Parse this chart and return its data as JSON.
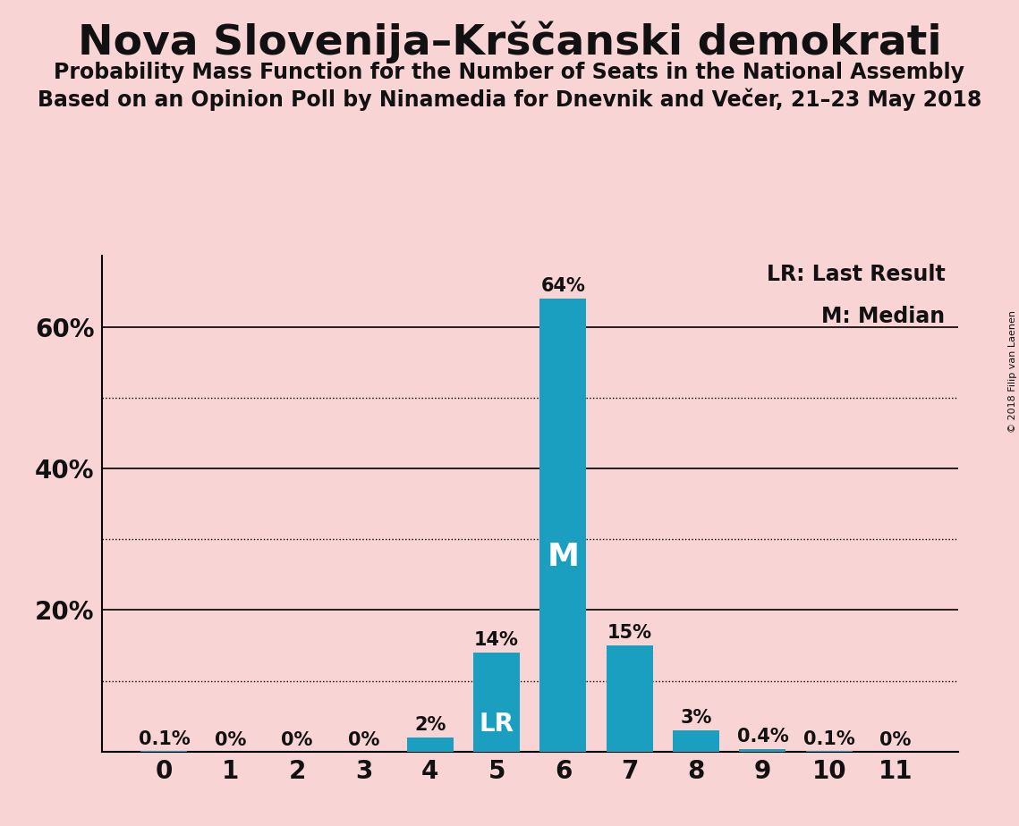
{
  "title": "Nova Slovenija–Krščanski demokrati",
  "subtitle1": "Probability Mass Function for the Number of Seats in the National Assembly",
  "subtitle2": "Based on an Opinion Poll by Ninamedia for Dnevnik and Večer, 21–23 May 2018",
  "copyright": "© 2018 Filip van Laenen",
  "categories": [
    0,
    1,
    2,
    3,
    4,
    5,
    6,
    7,
    8,
    9,
    10,
    11
  ],
  "values": [
    0.1,
    0.0,
    0.0,
    0.0,
    2.0,
    14.0,
    64.0,
    15.0,
    3.0,
    0.4,
    0.1,
    0.0
  ],
  "bar_color": "#1a9fc0",
  "background_color": "#f9d4d4",
  "bar_labels": [
    "0.1%",
    "0%",
    "0%",
    "0%",
    "2%",
    "14%",
    "64%",
    "15%",
    "3%",
    "0.4%",
    "0.1%",
    "0%"
  ],
  "ylim": [
    0,
    70
  ],
  "legend_lr": "LR: Last Result",
  "legend_m": "M: Median",
  "lr_bar": 5,
  "median_bar": 6,
  "dotted_lines": [
    10,
    30,
    50
  ],
  "solid_lines": [
    20,
    40,
    60
  ],
  "text_color": "#111111",
  "bar_label_fontsize": 15,
  "axis_tick_fontsize": 20,
  "title_fontsize": 34,
  "subtitle_fontsize": 17,
  "legend_fontsize": 17,
  "lr_label_fontsize": 20,
  "m_label_fontsize": 26,
  "copyright_fontsize": 8
}
